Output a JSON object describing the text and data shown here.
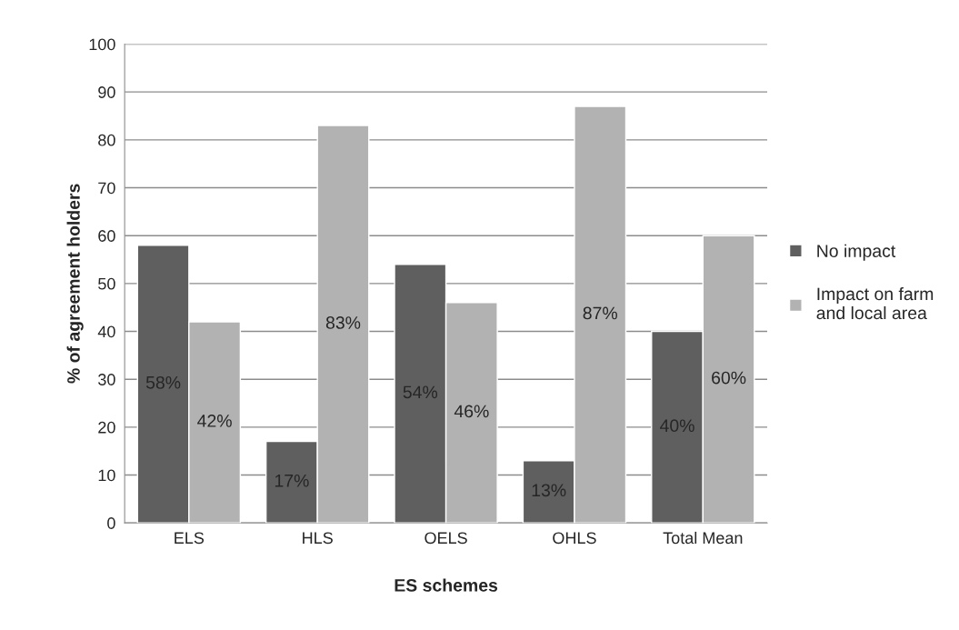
{
  "chart_data": {
    "type": "bar",
    "xlabel": "ES schemes",
    "ylabel": "% of agreement holders",
    "categories": [
      "ELS",
      "HLS",
      "OELS",
      "OHLS",
      "Total Mean"
    ],
    "series": [
      {
        "name": "No impact",
        "color": "#5f5f5f",
        "values": [
          58,
          17,
          54,
          13,
          40
        ],
        "value_labels": [
          "58%",
          "17%",
          "54%",
          "13%",
          "40%"
        ]
      },
      {
        "name": "Impact on farm and local area",
        "color": "#b2b2b2",
        "values": [
          42,
          83,
          46,
          87,
          60
        ],
        "value_labels": [
          "42%",
          "83%",
          "46%",
          "87%",
          "60%"
        ]
      }
    ],
    "ylim": [
      0,
      100
    ],
    "yticks": [
      0,
      10,
      20,
      30,
      40,
      50,
      60,
      70,
      80,
      90,
      100
    ],
    "grid": "y",
    "legend": "right"
  }
}
